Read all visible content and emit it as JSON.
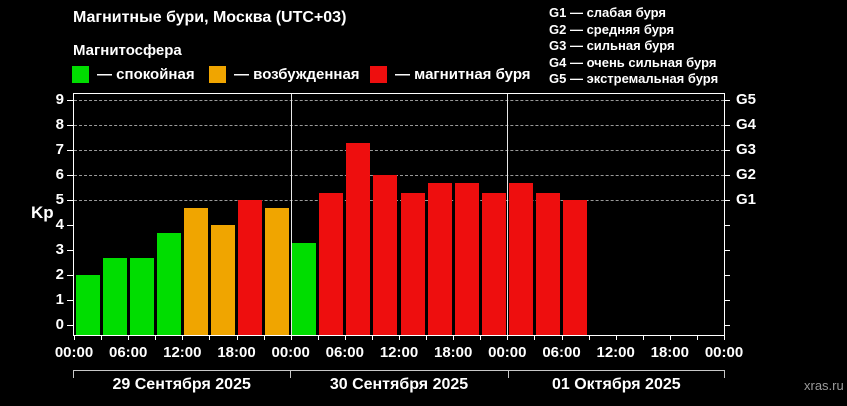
{
  "header": {
    "title": "Магнитные бури, Москва (UTC+03)",
    "subtitle": "Магнитосфера"
  },
  "legend": {
    "items": [
      {
        "name": "quiet",
        "label": "— спокойная",
        "color": "#00dd00"
      },
      {
        "name": "excited",
        "label": "— возбужденная",
        "color": "#f0a500"
      },
      {
        "name": "storm",
        "label": "— магнитная буря",
        "color": "#ee0e0e"
      }
    ]
  },
  "g_legend": {
    "items": [
      "G1 — слабая буря",
      "G2 — средняя буря",
      "G3 — сильная буря",
      "G4 — очень сильная буря",
      "G5 — экстремальная буря"
    ]
  },
  "watermark": "xras.ru",
  "chart_data": {
    "type": "bar",
    "title": "Магнитные бури, Москва (UTC+03)",
    "ylabel": "Kp",
    "ylim": [
      0,
      9
    ],
    "y_ticks": [
      0,
      1,
      2,
      3,
      4,
      5,
      6,
      7,
      8,
      9
    ],
    "grid_levels": [
      5,
      6,
      7,
      8,
      9
    ],
    "grid_on": true,
    "right_axis": [
      {
        "kp": 5,
        "label": "G1"
      },
      {
        "kp": 6,
        "label": "G2"
      },
      {
        "kp": 7,
        "label": "G3"
      },
      {
        "kp": 8,
        "label": "G4"
      },
      {
        "kp": 9,
        "label": "G5"
      }
    ],
    "hours_per_bar": 3,
    "x_tick_labels": [
      "00:00",
      "06:00",
      "12:00",
      "18:00",
      "00:00",
      "06:00",
      "12:00",
      "18:00",
      "00:00",
      "06:00",
      "12:00",
      "18:00",
      "00:00"
    ],
    "status_colors": {
      "quiet": "#00dd00",
      "excited": "#f0a500",
      "storm": "#ee0e0e"
    },
    "days": [
      {
        "date": "29 Сентября 2025",
        "bars": [
          {
            "hour": "00:00",
            "kp": 2.0,
            "status": "quiet"
          },
          {
            "hour": "03:00",
            "kp": 2.7,
            "status": "quiet"
          },
          {
            "hour": "06:00",
            "kp": 2.7,
            "status": "quiet"
          },
          {
            "hour": "09:00",
            "kp": 3.7,
            "status": "quiet"
          },
          {
            "hour": "12:00",
            "kp": 4.7,
            "status": "excited"
          },
          {
            "hour": "15:00",
            "kp": 4.0,
            "status": "excited"
          },
          {
            "hour": "18:00",
            "kp": 5.0,
            "status": "storm"
          },
          {
            "hour": "21:00",
            "kp": 4.7,
            "status": "excited"
          }
        ]
      },
      {
        "date": "30 Сентября 2025",
        "bars": [
          {
            "hour": "00:00",
            "kp": 3.3,
            "status": "quiet"
          },
          {
            "hour": "03:00",
            "kp": 5.3,
            "status": "storm"
          },
          {
            "hour": "06:00",
            "kp": 7.3,
            "status": "storm"
          },
          {
            "hour": "09:00",
            "kp": 6.0,
            "status": "storm"
          },
          {
            "hour": "12:00",
            "kp": 5.3,
            "status": "storm"
          },
          {
            "hour": "15:00",
            "kp": 5.7,
            "status": "storm"
          },
          {
            "hour": "18:00",
            "kp": 5.7,
            "status": "storm"
          },
          {
            "hour": "21:00",
            "kp": 5.3,
            "status": "storm"
          }
        ]
      },
      {
        "date": "01 Октября 2025",
        "bars": [
          {
            "hour": "00:00",
            "kp": 5.7,
            "status": "storm"
          },
          {
            "hour": "03:00",
            "kp": 5.3,
            "status": "storm"
          },
          {
            "hour": "06:00",
            "kp": 5.0,
            "status": "storm"
          }
        ]
      }
    ]
  }
}
